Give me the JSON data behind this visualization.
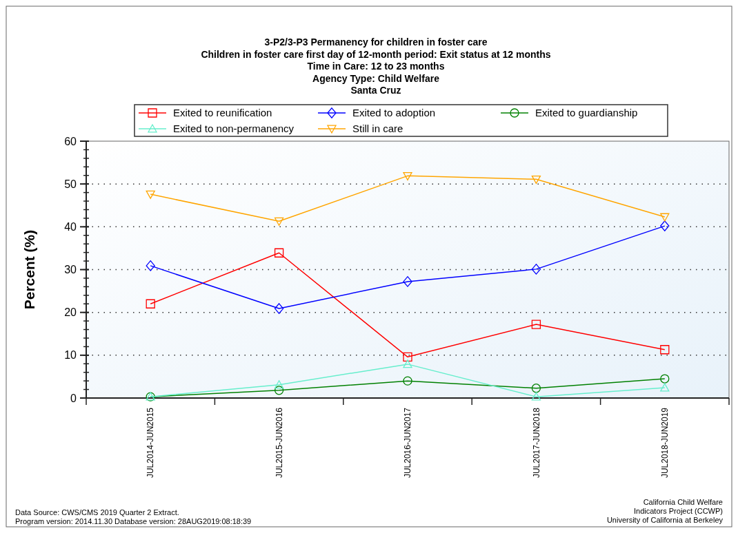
{
  "chart_data": {
    "type": "line",
    "title": "3-P2/3-P3 Permanency for children in foster care",
    "subtitle": "Children in foster care first day of 12-month period: Exit status at 12 months\nTime in Care: 12 to 23 months\nAgency Type: Child Welfare\nSanta Cruz",
    "ylabel": "Percent (%)",
    "categories": [
      "JUL2014-JUN2015",
      "JUL2015-JUN2016",
      "JUL2016-JUN2017",
      "JUL2017-JUN2018",
      "JUL2018-JUN2019"
    ],
    "series": [
      {
        "name": "Exited to reunification",
        "color": "#ff0000",
        "marker": "square",
        "values": [
          22,
          33.9,
          9.6,
          17.2,
          11.3
        ]
      },
      {
        "name": "Exited to adoption",
        "color": "#0000ff",
        "marker": "diamond",
        "values": [
          30.9,
          20.9,
          27.2,
          30.1,
          40.2
        ]
      },
      {
        "name": "Exited to guardianship",
        "color": "#008000",
        "marker": "circle",
        "values": [
          0.3,
          1.8,
          4.0,
          2.3,
          4.5
        ]
      },
      {
        "name": "Exited to non-permanency",
        "color": "#66eecc",
        "marker": "triangle",
        "values": [
          0.3,
          3.1,
          7.9,
          0.3,
          2.4
        ]
      },
      {
        "name": "Still in care",
        "color": "#ffa500",
        "marker": "triangle-down",
        "values": [
          47.6,
          41.3,
          51.9,
          51.1,
          42.3
        ]
      }
    ],
    "ylim": [
      0,
      60
    ],
    "yticks": [
      0,
      10,
      20,
      30,
      40,
      50,
      60
    ],
    "grid": "y",
    "legend": "top",
    "annotations": [
      "Data Source: CWS/CMS 2019 Quarter 2 Extract.\nProgram version: 2014.11.30 Database version:  28AUG2019:08:18:39",
      "California Child Welfare\nIndicators Project (CCWP)\nUniversity of California at Berkeley"
    ]
  }
}
